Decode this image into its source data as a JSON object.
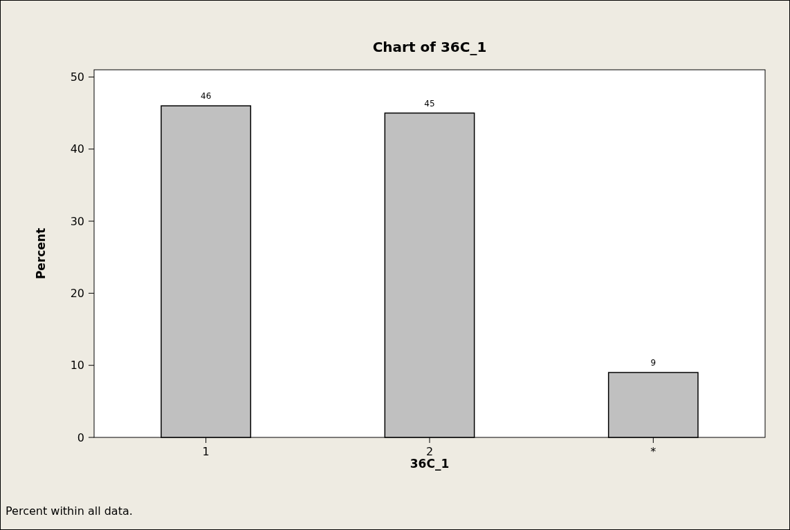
{
  "chart_data": {
    "type": "bar",
    "title": "Chart of 36C_1",
    "xlabel": "36C_1",
    "ylabel": "Percent",
    "categories": [
      "1",
      "2",
      "*"
    ],
    "values": [
      46,
      45,
      9
    ],
    "color": "#c0c0c0",
    "ylim": [
      0,
      51
    ],
    "yticks": [
      0,
      10,
      20,
      30,
      40,
      50
    ],
    "data_labels": true,
    "grid": false,
    "annotations": [
      "Percent within all data."
    ]
  }
}
